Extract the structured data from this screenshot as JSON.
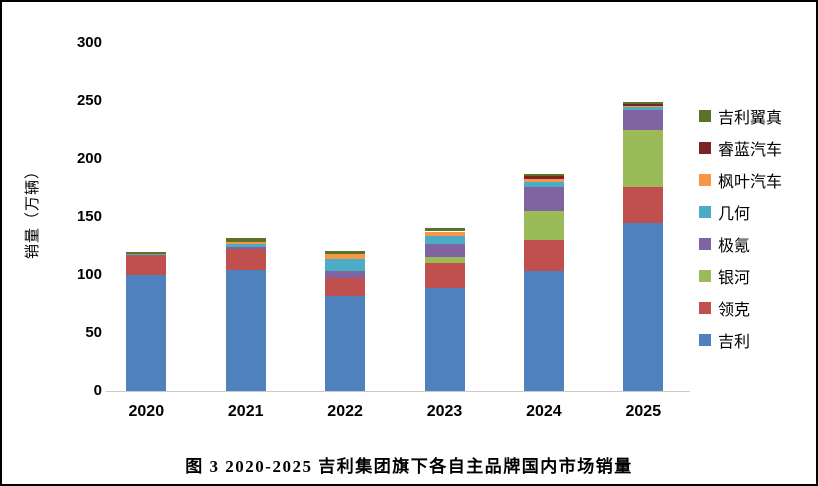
{
  "figure": {
    "caption": "图 3 2020-2025 吉利集团旗下各自主品牌国内市场销量"
  },
  "chart_data": {
    "type": "bar",
    "stacked": true,
    "title": "",
    "caption": "图 3 2020-2025 吉利集团旗下各自主品牌国内市场销量",
    "xlabel": "",
    "ylabel": "销量（万辆）",
    "unit": "万辆",
    "categories": [
      "2020",
      "2021",
      "2022",
      "2023",
      "2024",
      "2025"
    ],
    "series": [
      {
        "name": "吉利",
        "color": "#4F81BD",
        "values": [
          100,
          104.5,
          82,
          89,
          103.5,
          145
        ]
      },
      {
        "name": "领克",
        "color": "#C0504D",
        "values": [
          17.5,
          18,
          15.5,
          21,
          27,
          31
        ]
      },
      {
        "name": "银河",
        "color": "#9BBB59",
        "values": [
          0,
          0,
          0,
          5.5,
          25,
          49
        ]
      },
      {
        "name": "极氪",
        "color": "#8064A2",
        "values": [
          0,
          2,
          6,
          11,
          20,
          17
        ]
      },
      {
        "name": "几何",
        "color": "#4BACC6",
        "values": [
          0.5,
          2.5,
          10.5,
          7,
          5,
          2.5
        ]
      },
      {
        "name": "枫叶汽车",
        "color": "#F79646",
        "values": [
          0,
          1.5,
          4.5,
          4,
          2.5,
          1.5
        ]
      },
      {
        "name": "睿蓝汽车",
        "color": "#7B2423",
        "values": [
          0,
          0,
          0,
          0,
          2,
          1.5
        ]
      },
      {
        "name": "吉利翼真",
        "color": "#5A7228",
        "values": [
          2,
          3.5,
          2.5,
          3,
          2.5,
          1.5
        ]
      }
    ],
    "totals": [
      120,
      132,
      121,
      140.5,
      187.5,
      249
    ],
    "ylim": [
      0,
      300
    ],
    "yticks": [
      0,
      50,
      100,
      150,
      200,
      250,
      300
    ],
    "grid": false,
    "legend_position": "right",
    "legend_order_top_to_bottom": [
      "吉利翼真",
      "睿蓝汽车",
      "枫叶汽车",
      "几何",
      "极氪",
      "银河",
      "领克",
      "吉利"
    ]
  },
  "style_colors": {
    "axis_line": "#C9C9C9",
    "text": "#000000",
    "background": "#FFFFFF",
    "border": "#000000"
  }
}
